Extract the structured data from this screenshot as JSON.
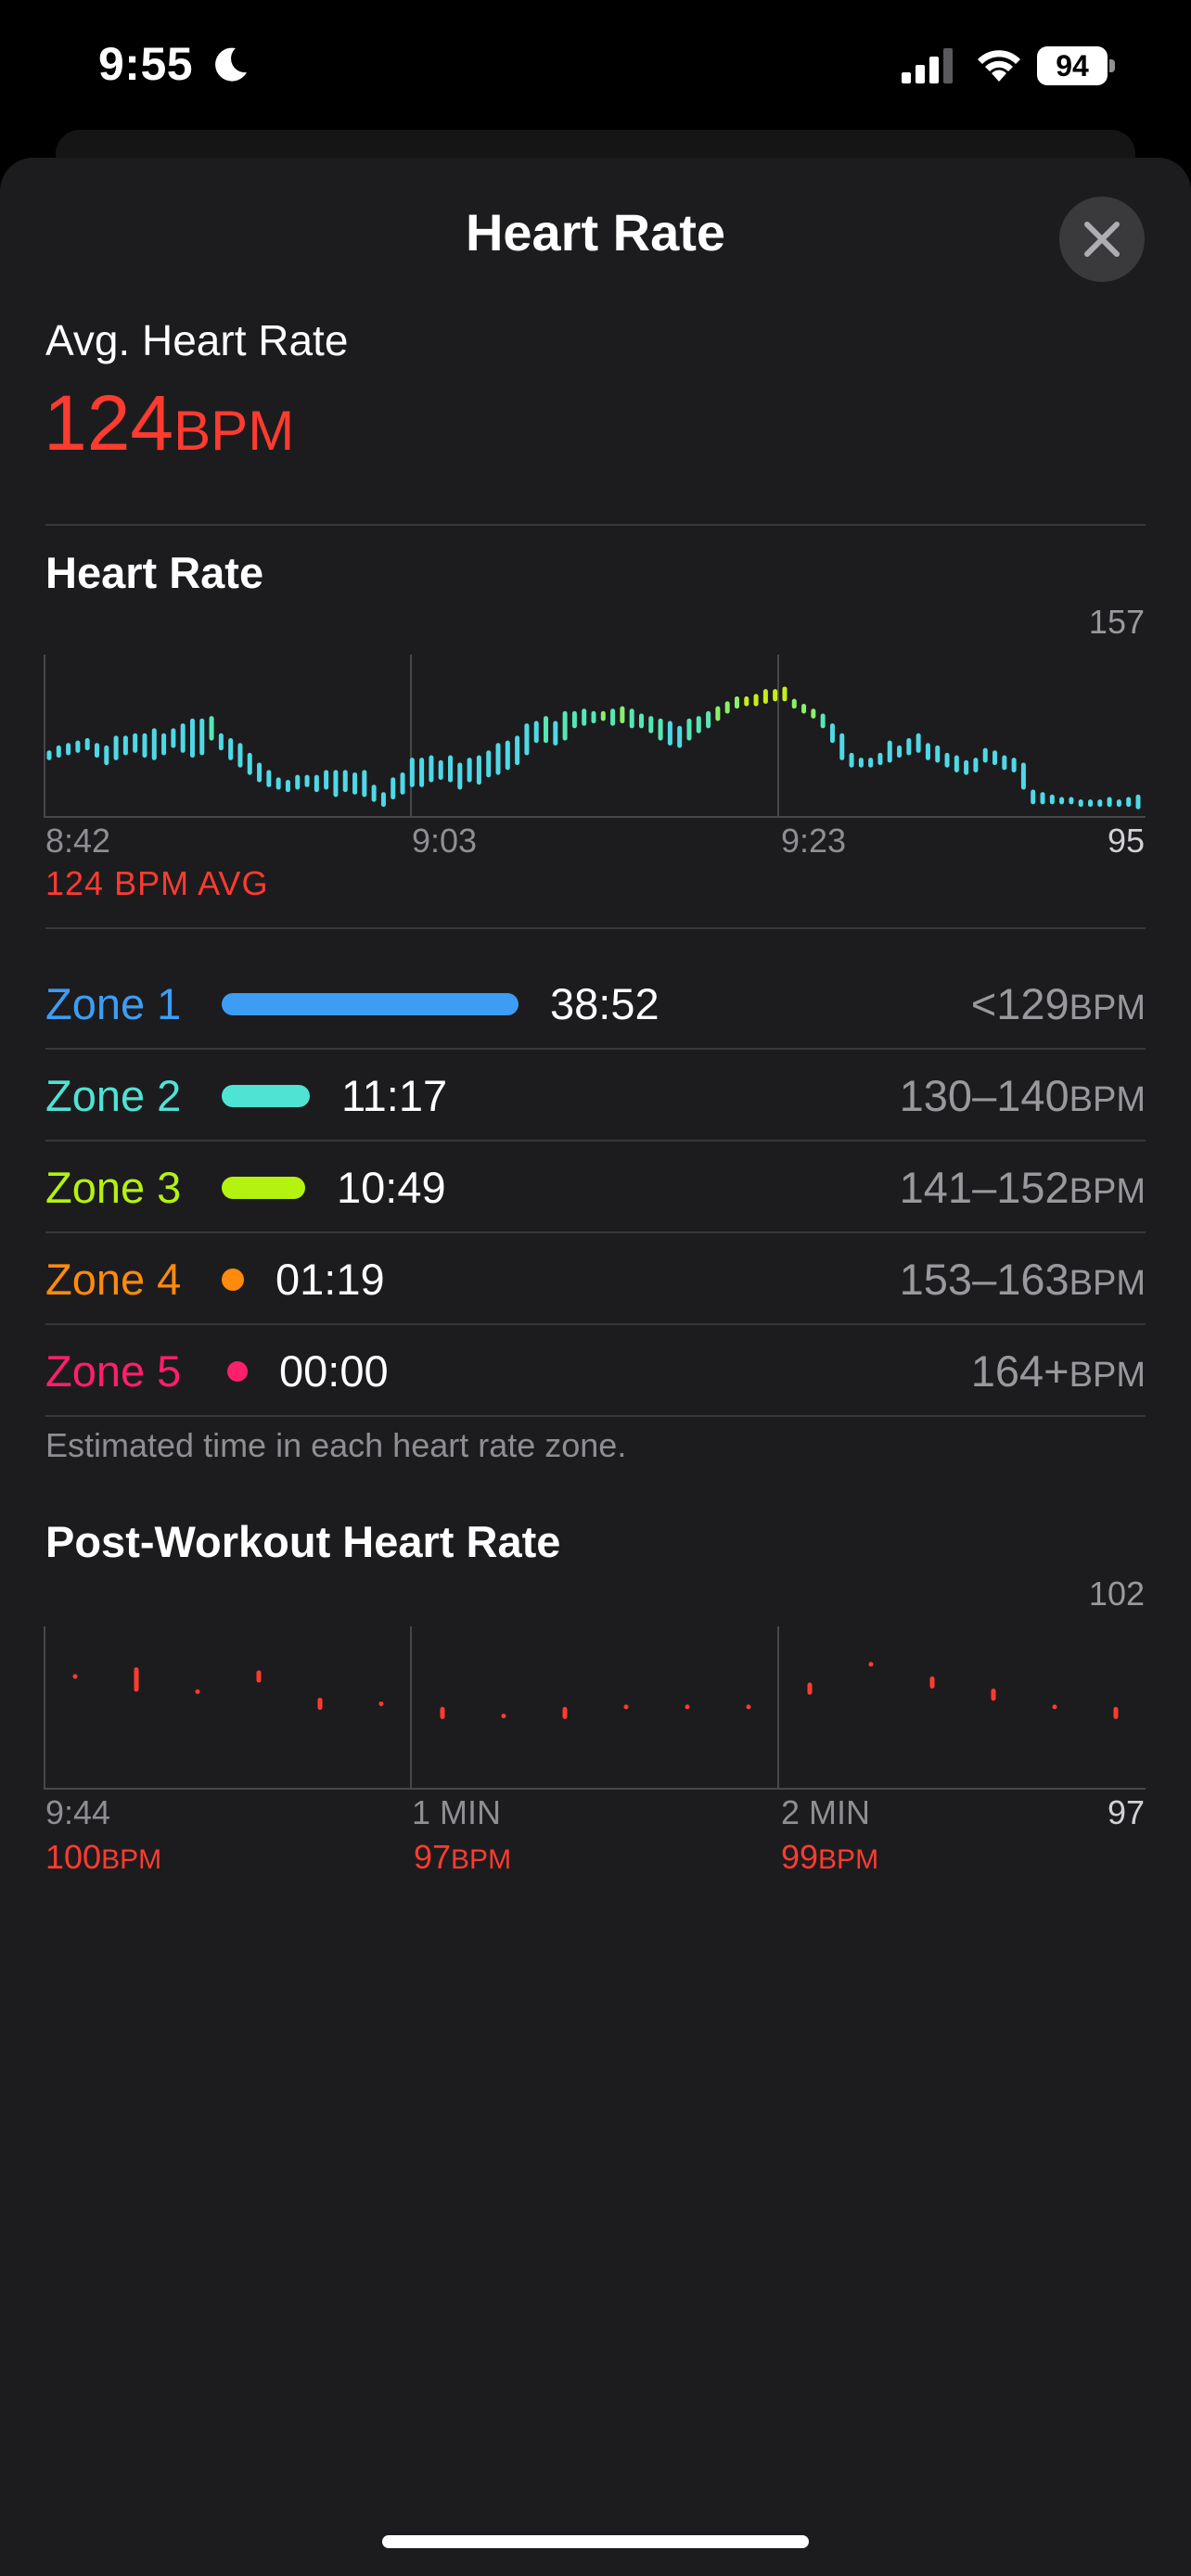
{
  "status_bar": {
    "time": "9:55",
    "battery": "94"
  },
  "sheet": {
    "title": "Heart Rate"
  },
  "summary": {
    "label": "Avg. Heart Rate",
    "value": "124",
    "unit": "BPM"
  },
  "heart_rate_section": {
    "title": "Heart Rate",
    "max_label": "157",
    "min_label": "95",
    "time_labels": [
      "8:42",
      "9:03",
      "9:23"
    ],
    "avg_caption": "124 BPM AVG"
  },
  "zones": [
    {
      "name": "Zone 1",
      "time": "38:52",
      "range": "<129",
      "unit": "BPM",
      "color": "#3d9df5",
      "fraction": 0.64
    },
    {
      "name": "Zone 2",
      "time": "11:17",
      "range": "130–140",
      "unit": "BPM",
      "color": "#4fe3d4",
      "fraction": 0.19
    },
    {
      "name": "Zone 3",
      "time": "10:49",
      "range": "141–152",
      "unit": "BPM",
      "color": "#b4f20f",
      "fraction": 0.18
    },
    {
      "name": "Zone 4",
      "time": "01:19",
      "range": "153–163",
      "unit": "BPM",
      "color": "#ff8a0c",
      "fraction": 0.02
    },
    {
      "name": "Zone 5",
      "time": "00:00",
      "range": "164+",
      "unit": "BPM",
      "color": "#ff1f6b",
      "fraction": 0.0
    }
  ],
  "zone_note": "Estimated time in each heart rate zone.",
  "post_workout": {
    "title": "Post-Workout Heart Rate",
    "max_label": "102",
    "min_label": "97",
    "time_labels": [
      "9:44",
      "1 MIN",
      "2 MIN"
    ],
    "values": [
      {
        "value": "100",
        "unit": "BPM"
      },
      {
        "value": "97",
        "unit": "BPM"
      },
      {
        "value": "99",
        "unit": "BPM"
      }
    ]
  },
  "chart_data": [
    {
      "type": "bar",
      "title": "Heart Rate",
      "x_labels": [
        "8:42",
        "9:03",
        "9:23"
      ],
      "ylim": [
        95,
        157
      ],
      "avg": 124,
      "series": [
        {
          "values": [
            [
              117,
              121
            ],
            [
              118,
              123
            ],
            [
              119,
              124
            ],
            [
              120,
              125
            ],
            [
              121,
              126
            ],
            [
              118,
              124
            ],
            [
              115,
              123
            ],
            [
              117,
              127
            ],
            [
              119,
              127
            ],
            [
              120,
              128
            ],
            [
              118,
              128
            ],
            [
              117,
              130
            ],
            [
              119,
              128
            ],
            [
              122,
              130
            ],
            [
              120,
              132
            ],
            [
              118,
              134
            ],
            [
              119,
              134
            ],
            [
              125,
              135
            ],
            [
              121,
              128
            ],
            [
              117,
              126
            ],
            [
              114,
              124
            ],
            [
              111,
              120
            ],
            [
              108,
              116
            ],
            [
              106,
              113
            ],
            [
              105,
              110
            ],
            [
              104,
              109
            ],
            [
              105,
              111
            ],
            [
              106,
              111
            ],
            [
              104,
              111
            ],
            [
              105,
              113
            ],
            [
              102,
              113
            ],
            [
              104,
              113
            ],
            [
              103,
              112
            ],
            [
              102,
              113
            ],
            [
              100,
              107
            ],
            [
              98,
              104
            ],
            [
              101,
              110
            ],
            [
              103,
              112
            ],
            [
              106,
              118
            ],
            [
              106,
              118
            ],
            [
              108,
              119
            ],
            [
              109,
              117
            ],
            [
              108,
              119
            ],
            [
              105,
              116
            ],
            [
              108,
              118
            ],
            [
              107,
              119
            ],
            [
              110,
              121
            ],
            [
              111,
              124
            ],
            [
              113,
              125
            ],
            [
              115,
              127
            ],
            [
              119,
              132
            ],
            [
              124,
              133
            ],
            [
              124,
              135
            ],
            [
              123,
              133
            ],
            [
              125,
              137
            ],
            [
              130,
              137
            ],
            [
              131,
              138
            ],
            [
              132,
              137
            ],
            [
              133,
              137
            ],
            [
              131,
              138
            ],
            [
              132,
              139
            ],
            [
              130,
              138
            ],
            [
              130,
              136
            ],
            [
              128,
              135
            ],
            [
              125,
              134
            ],
            [
              123,
              133
            ],
            [
              122,
              131
            ],
            [
              125,
              134
            ],
            [
              128,
              135
            ],
            [
              130,
              137
            ],
            [
              133,
              139
            ],
            [
              136,
              141
            ],
            [
              138,
              143
            ],
            [
              139,
              143
            ],
            [
              139,
              144
            ],
            [
              140,
              146
            ],
            [
              141,
              146
            ],
            [
              141,
              147
            ],
            [
              138,
              142
            ],
            [
              136,
              140
            ],
            [
              134,
              138
            ],
            [
              130,
              136
            ],
            [
              124,
              132
            ],
            [
              117,
              128
            ],
            [
              114,
              120
            ],
            [
              114,
              118
            ],
            [
              114,
              118
            ],
            [
              115,
              120
            ],
            [
              116,
              125
            ],
            [
              118,
              123
            ],
            [
              119,
              126
            ],
            [
              120,
              128
            ],
            [
              117,
              124
            ],
            [
              116,
              123
            ],
            [
              114,
              120
            ],
            [
              112,
              119
            ],
            [
              111,
              117
            ],
            [
              112,
              118
            ],
            [
              116,
              122
            ],
            [
              115,
              121
            ],
            [
              113,
              119
            ],
            [
              112,
              118
            ],
            [
              105,
              116
            ],
            [
              99,
              105
            ],
            [
              99,
              104
            ],
            [
              99,
              103
            ],
            [
              99,
              102
            ],
            [
              99,
              102
            ],
            [
              98,
              101
            ],
            [
              98,
              101
            ],
            [
              98,
              101
            ],
            [
              98,
              102
            ],
            [
              98,
              101
            ],
            [
              98,
              102
            ],
            [
              97,
              103
            ]
          ]
        }
      ]
    },
    {
      "type": "bar",
      "title": "Post-Workout Heart Rate",
      "x_labels": [
        "9:44",
        "1 MIN",
        "2 MIN"
      ],
      "ylim": [
        97,
        102
      ],
      "series": [
        {
          "values": [
            [
              100.6,
              100.6
            ],
            [
              100.1,
              100.9
            ],
            [
              100.1,
              100.1
            ],
            [
              100.4,
              100.8
            ],
            [
              99.5,
              99.9
            ],
            [
              99.7,
              99.7
            ],
            [
              99.2,
              99.6
            ],
            [
              99.3,
              99.3
            ],
            [
              99.2,
              99.6
            ],
            [
              99.6,
              99.6
            ],
            [
              99.6,
              99.6
            ],
            [
              99.6,
              99.6
            ],
            [
              100.0,
              100.4
            ],
            [
              101.0,
              101.0
            ],
            [
              100.2,
              100.6
            ],
            [
              99.8,
              100.2
            ],
            [
              99.6,
              99.6
            ],
            [
              99.2,
              99.6
            ]
          ]
        }
      ]
    }
  ]
}
